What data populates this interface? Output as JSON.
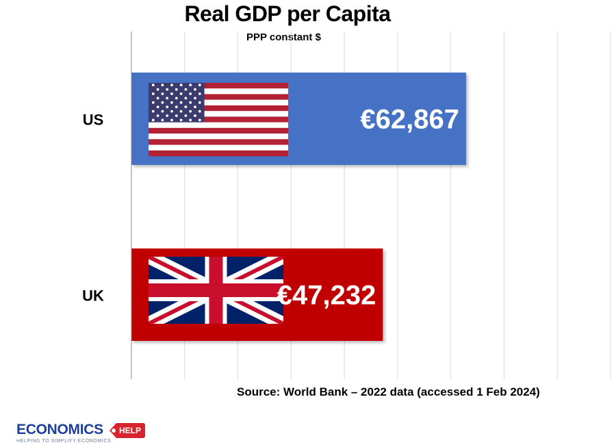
{
  "chart_data": {
    "type": "bar",
    "orientation": "horizontal",
    "title": "Real GDP per Capita",
    "subtitle": "PPP constant $",
    "categories": [
      "US",
      "UK"
    ],
    "values": [
      62867,
      47232
    ],
    "value_labels": [
      "€62,867",
      "€47,232"
    ],
    "bar_colors": [
      "#4472c4",
      "#c00000"
    ],
    "flags": [
      "us-flag",
      "uk-flag"
    ],
    "xlim": [
      0,
      90000
    ],
    "x_gridline_step": 10000,
    "grid": true,
    "axis_tick_labels_shown": false,
    "source": "Source: World Bank – 2022 data (accessed 1 Feb 2024)"
  },
  "logo": {
    "main": "ECONOMICS",
    "badge": "HELP",
    "tagline": "HELPING TO SIMPLIFY ECONOMICS",
    "brand_color": "#1c3f9a",
    "badge_color": "#d6232e"
  }
}
